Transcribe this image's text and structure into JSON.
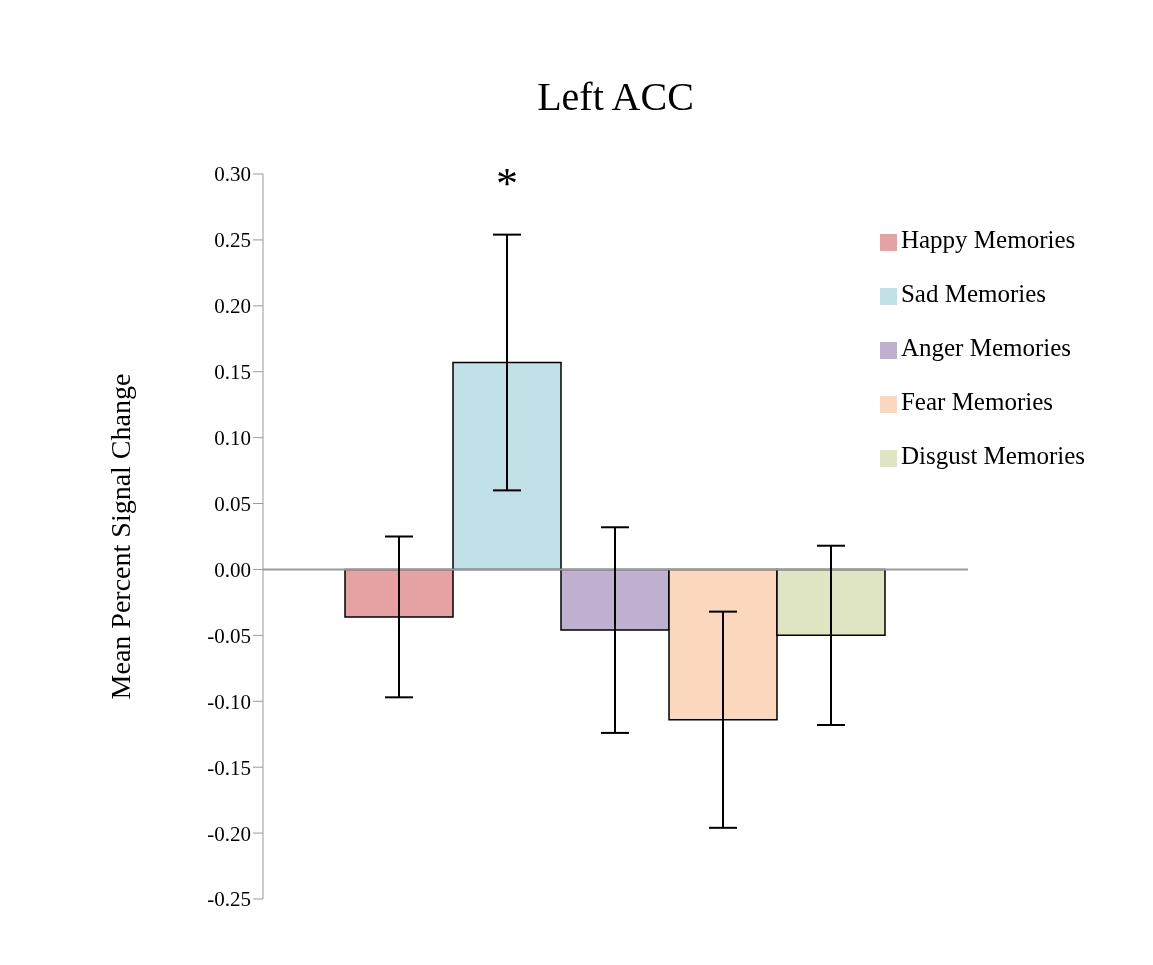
{
  "chart_data": {
    "type": "bar",
    "title": "Left ACC",
    "ylabel": "Mean Percent Signal Change",
    "categories": [
      null
    ],
    "series": [
      {
        "name": "Happy Memories",
        "color": "#e6a1a3",
        "values": [
          -0.036
        ],
        "errors": [
          0.061
        ]
      },
      {
        "name": "Sad Memories",
        "color": "#c1e1e9",
        "values": [
          0.157
        ],
        "errors": [
          0.097
        ]
      },
      {
        "name": "Anger Memories",
        "color": "#bfb0cf",
        "values": [
          -0.046
        ],
        "errors": [
          0.078
        ]
      },
      {
        "name": "Fear Memories",
        "color": "#fbd7bd",
        "values": [
          -0.114
        ],
        "errors": [
          0.082
        ]
      },
      {
        "name": "Disgust Memories",
        "color": "#dfe4c3",
        "values": [
          -0.05
        ],
        "errors": [
          0.068
        ]
      }
    ],
    "ylim": [
      -0.25,
      0.3
    ],
    "yticks": [
      {
        "value": -0.25,
        "label": "-0.25"
      },
      {
        "value": -0.2,
        "label": "-0.20"
      },
      {
        "value": -0.15,
        "label": "-0.15"
      },
      {
        "value": -0.1,
        "label": "-0.10"
      },
      {
        "value": -0.05,
        "label": "-0.05"
      },
      {
        "value": 0,
        "label": "0.00"
      },
      {
        "value": 0.05,
        "label": "0.05"
      },
      {
        "value": 0.1,
        "label": "0.10"
      },
      {
        "value": 0.15,
        "label": "0.15"
      },
      {
        "value": 0.2,
        "label": "0.20"
      },
      {
        "value": 0.25,
        "label": "0.25"
      },
      {
        "value": 0.3,
        "label": "0.30"
      }
    ],
    "ref_lines": [
      {
        "axis": "y",
        "value": 0,
        "color": "#999999"
      }
    ],
    "grid": false,
    "legend": "top right",
    "annotations": [
      "*"
    ]
  }
}
